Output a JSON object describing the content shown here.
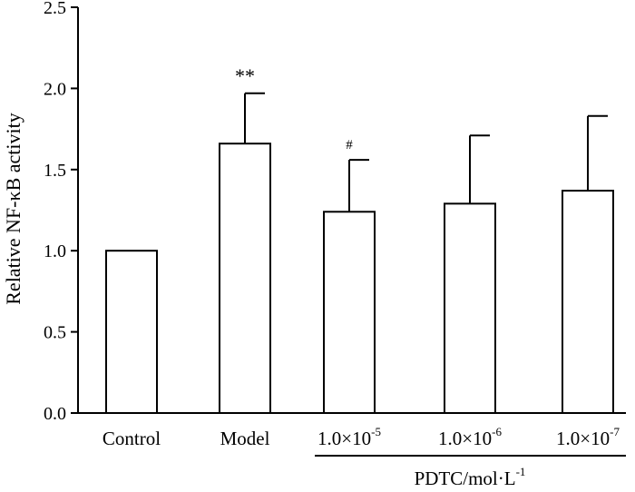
{
  "chart_data": {
    "type": "bar",
    "ylabel": "Relative NF-κB activity",
    "ylim": [
      0,
      2.5
    ],
    "yticks": [
      "0.0",
      "0.5",
      "1.0",
      "1.5",
      "2.0",
      "2.5"
    ],
    "ytick_values": [
      0,
      0.5,
      1.0,
      1.5,
      2.0,
      2.5
    ],
    "categories": [
      {
        "base": "Control",
        "sup": ""
      },
      {
        "base": "Model",
        "sup": ""
      },
      {
        "base": "1.0×10",
        "sup": "-5"
      },
      {
        "base": "1.0×10",
        "sup": "-6"
      },
      {
        "base": "1.0×10",
        "sup": "-7"
      }
    ],
    "values": [
      1.0,
      1.66,
      1.24,
      1.29,
      1.37
    ],
    "errors": [
      0,
      0.31,
      0.32,
      0.42,
      0.46
    ],
    "annotations": [
      "",
      "**",
      "#",
      "",
      ""
    ],
    "group_label": {
      "base": "PDTC/mol·L",
      "sup": "-1"
    }
  }
}
